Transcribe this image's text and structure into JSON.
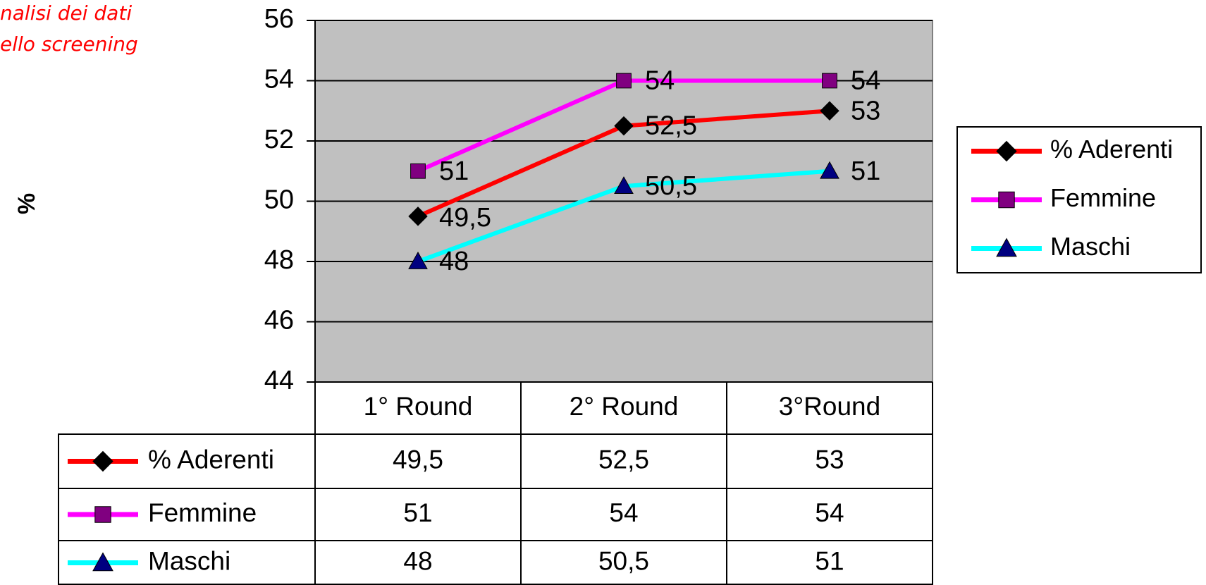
{
  "chart_data": {
    "type": "line",
    "title_lines": [
      "nalisi dei dati",
      "ello screening"
    ],
    "ylabel": "%",
    "categories": [
      "1° Round",
      "2° Round",
      "3°Round"
    ],
    "series": [
      {
        "name": "% Aderenti",
        "color": "#ff0000",
        "marker": "diamond",
        "marker_color": "#000000",
        "values": [
          49.5,
          52.5,
          53
        ],
        "value_labels": [
          "49,5",
          "52,5",
          "53"
        ]
      },
      {
        "name": "Femmine",
        "color": "#ff00ff",
        "marker": "square",
        "marker_color": "#800080",
        "values": [
          51,
          54,
          54
        ],
        "value_labels": [
          "51",
          "54",
          "54"
        ]
      },
      {
        "name": "Maschi",
        "color": "#00ffff",
        "marker": "triangle",
        "marker_color": "#000080",
        "values": [
          48,
          50.5,
          51
        ],
        "value_labels": [
          "48",
          "50,5",
          "51"
        ]
      }
    ],
    "ylim": [
      44,
      56
    ],
    "yticks": [
      44,
      46,
      48,
      50,
      52,
      54,
      56
    ],
    "grid": true,
    "legend": "right"
  }
}
